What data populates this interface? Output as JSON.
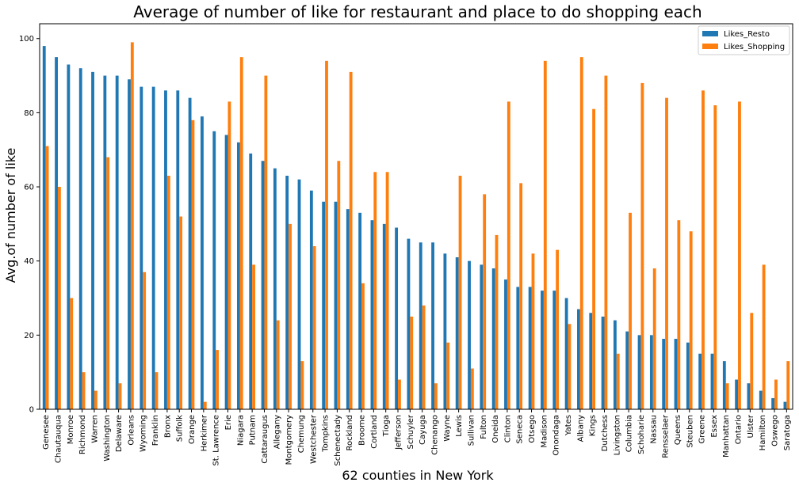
{
  "chart_data": {
    "type": "bar",
    "title": "Average of number of like for restaurant and place to do shopping each",
    "xlabel": "62 counties in New York",
    "ylabel": "Avg.of number of like",
    "ylim": [
      0,
      104
    ],
    "yticks": [
      0,
      20,
      40,
      60,
      80,
      100
    ],
    "grid": false,
    "legend_position": "top-right",
    "categories": [
      "Genesee",
      "Chautauqua",
      "Monroe",
      "Richmond",
      "Warren",
      "Washington",
      "Delaware",
      "Orleans",
      "Wyoming",
      "Franklin",
      "Bronx",
      "Suffolk",
      "Orange",
      "Herkimer",
      "St. Lawrence",
      "Erie",
      "Niagara",
      "Putnam",
      "Cattaraugus",
      "Allegany",
      "Montgomery",
      "Chemung",
      "Westchester",
      "Tompkins",
      "Schenectady",
      "Rockland",
      "Broome",
      "Cortland",
      "Tioga",
      "Jefferson",
      "Schuyler",
      "Cayuga",
      "Chenango",
      "Wayne",
      "Lewis",
      "Sullivan",
      "Fulton",
      "Oneida",
      "Clinton",
      "Seneca",
      "Otsego",
      "Madison",
      "Onondaga",
      "Yates",
      "Albany",
      "Kings",
      "Dutchess",
      "Livingston",
      "Columbia",
      "Schoharie",
      "Nassau",
      "Rensselaer",
      "Queens",
      "Steuben",
      "Greene",
      "Essex",
      "Manhattan",
      "Ontario",
      "Ulster",
      "Hamilton",
      "Oswego",
      "Saratoga"
    ],
    "series": [
      {
        "name": "Likes_Resto",
        "color": "#1f77b4",
        "values": [
          98,
          95,
          93,
          92,
          91,
          90,
          90,
          89,
          87,
          87,
          86,
          86,
          84,
          79,
          75,
          74,
          72,
          69,
          67,
          65,
          63,
          62,
          59,
          56,
          56,
          54,
          53,
          51,
          50,
          49,
          46,
          45,
          45,
          42,
          41,
          40,
          39,
          38,
          35,
          33,
          33,
          32,
          32,
          30,
          27,
          26,
          25,
          24,
          21,
          20,
          20,
          19,
          19,
          18,
          15,
          15,
          13,
          8,
          7,
          5,
          3,
          2
        ]
      },
      {
        "name": "Likes_Shopping",
        "color": "#ff7f0e",
        "values": [
          71,
          60,
          30,
          10,
          5,
          68,
          7,
          99,
          37,
          10,
          63,
          52,
          78,
          2,
          16,
          83,
          95,
          39,
          90,
          24,
          50,
          13,
          44,
          94,
          67,
          91,
          34,
          64,
          64,
          8,
          25,
          28,
          7,
          18,
          63,
          11,
          58,
          47,
          83,
          61,
          42,
          94,
          43,
          23,
          95,
          81,
          90,
          15,
          53,
          88,
          38,
          84,
          51,
          48,
          86,
          82,
          7,
          83,
          26,
          39,
          8,
          13
        ]
      }
    ]
  }
}
